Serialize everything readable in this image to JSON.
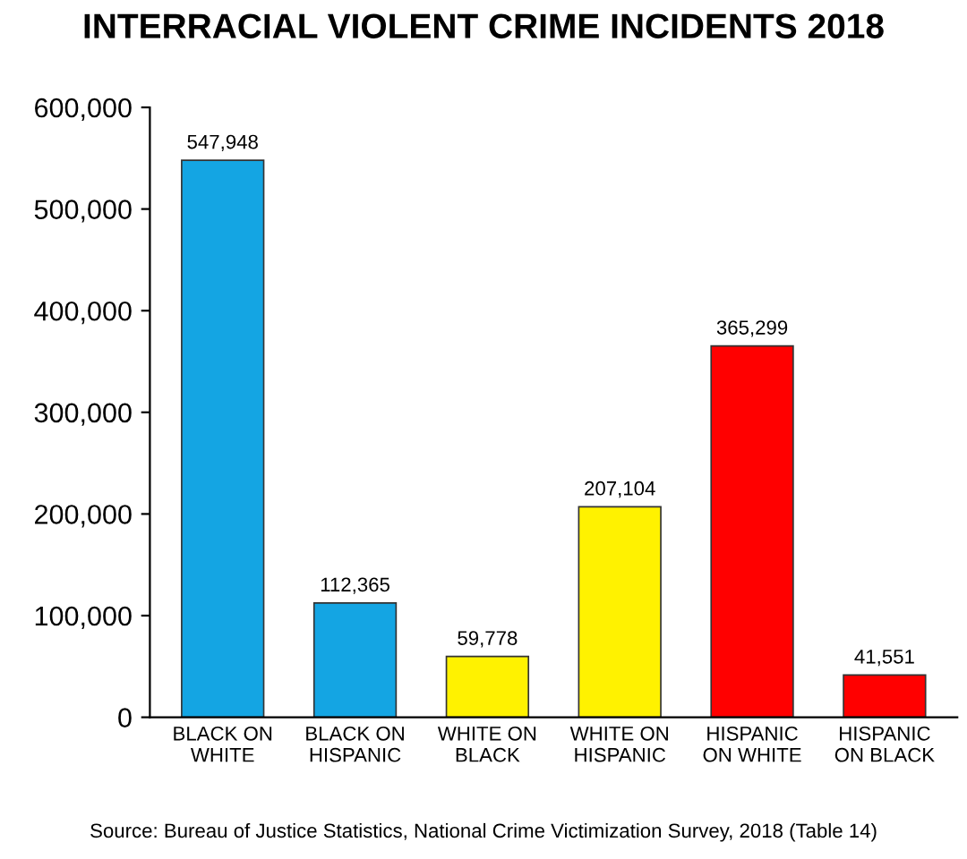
{
  "chart_data": {
    "type": "bar",
    "title": "INTERRACIAL VIOLENT CRIME INCIDENTS 2018",
    "categories": [
      "BLACK ON\nWHITE",
      "BLACK ON\nHISPANIC",
      "WHITE ON\nBLACK",
      "WHITE ON\nHISPANIC",
      "HISPANIC\nON WHITE",
      "HISPANIC\nON BLACK"
    ],
    "values": [
      547948,
      112365,
      59778,
      207104,
      365299,
      41551
    ],
    "colors": [
      "#14a5e3",
      "#14a5e3",
      "#fff200",
      "#fff200",
      "#ff0000",
      "#ff0000"
    ],
    "value_labels": [
      "547,948",
      "112,365",
      "59,778",
      "207,104",
      "365,299",
      "41,551"
    ],
    "ylim": [
      0,
      600000
    ],
    "yticks": [
      {
        "value": 0,
        "label": "0"
      },
      {
        "value": 100000,
        "label": "100,000"
      },
      {
        "value": 200000,
        "label": "200,000"
      },
      {
        "value": 300000,
        "label": "300,000"
      },
      {
        "value": 400000,
        "label": "400,000"
      },
      {
        "value": 500000,
        "label": "500,000"
      },
      {
        "value": 600000,
        "label": "600,000"
      }
    ],
    "grid": false,
    "annotations": [
      "Source: Bureau of Justice Statistics, National Crime Victimization Survey, 2018 (Table 14)"
    ]
  }
}
